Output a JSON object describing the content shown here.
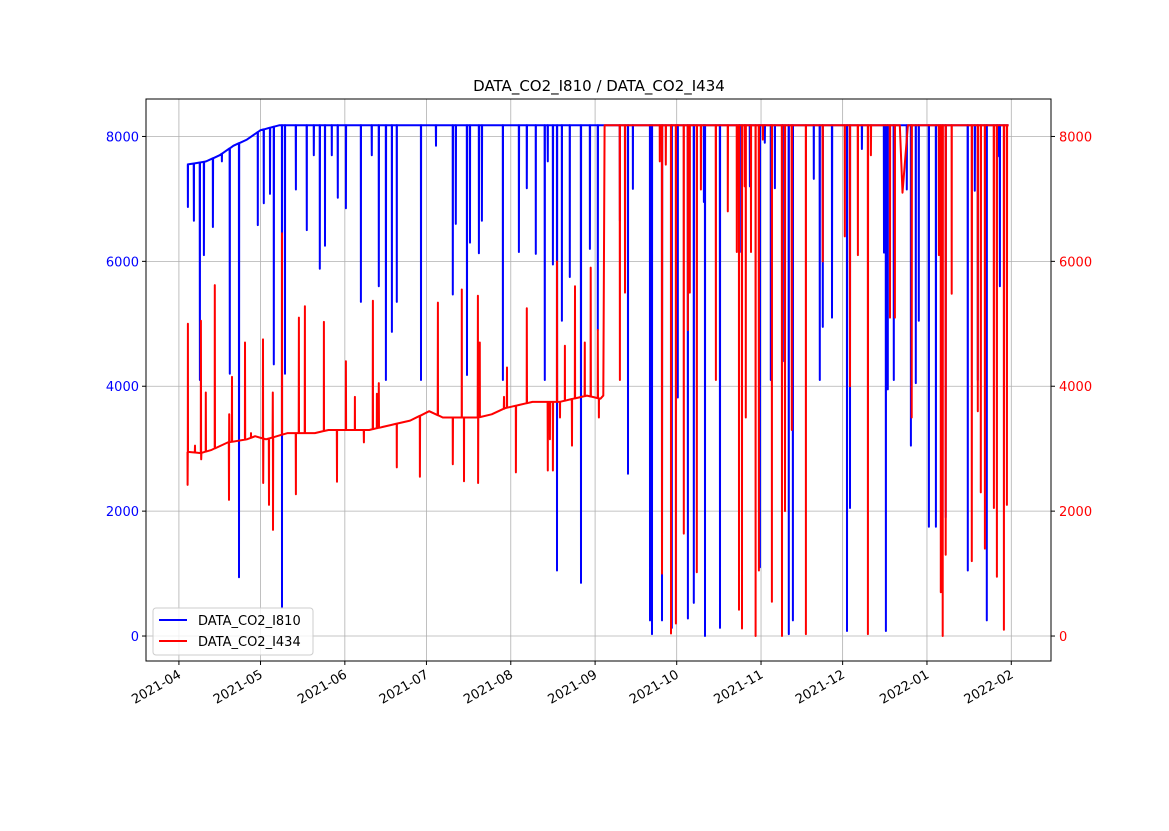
{
  "chart_data": {
    "type": "line",
    "title": "DATA_CO2_I810 / DATA_CO2_I434",
    "x_unit": "days since 2021-04-01",
    "x_origin_date": "2021-04-01",
    "xlim_days": [
      -12.1,
      320.6
    ],
    "ylim": [
      -400,
      8600
    ],
    "grid": true,
    "legend_position": "lower-left",
    "x_ticks": [
      {
        "day": 0,
        "label": "2021-04"
      },
      {
        "day": 30,
        "label": "2021-05"
      },
      {
        "day": 61,
        "label": "2021-06"
      },
      {
        "day": 91,
        "label": "2021-07"
      },
      {
        "day": 122,
        "label": "2021-08"
      },
      {
        "day": 153,
        "label": "2021-09"
      },
      {
        "day": 183,
        "label": "2021-10"
      },
      {
        "day": 214,
        "label": "2021-11"
      },
      {
        "day": 244,
        "label": "2021-12"
      },
      {
        "day": 275,
        "label": "2022-01"
      },
      {
        "day": 306,
        "label": "2022-02"
      }
    ],
    "y_ticks_left": [
      {
        "value": 0,
        "label": "0"
      },
      {
        "value": 2000,
        "label": "2000"
      },
      {
        "value": 4000,
        "label": "4000"
      },
      {
        "value": 6000,
        "label": "6000"
      },
      {
        "value": 8000,
        "label": "8000"
      }
    ],
    "y_ticks_right": [
      {
        "value": 0,
        "label": "0"
      },
      {
        "value": 2000,
        "label": "2000"
      },
      {
        "value": 4000,
        "label": "4000"
      },
      {
        "value": 6000,
        "label": "6000"
      },
      {
        "value": 8000,
        "label": "8000"
      }
    ],
    "series": [
      {
        "name": "DATA_CO2_I810",
        "color": "#0000ff",
        "axis": "left",
        "baseline": [
          [
            3,
            7550
          ],
          [
            10,
            7600
          ],
          [
            15,
            7700
          ],
          [
            20,
            7850
          ],
          [
            25,
            7950
          ],
          [
            30,
            8100
          ],
          [
            37,
            8180
          ],
          [
            305,
            8180
          ]
        ],
        "spikes": [
          [
            3.3,
            6870
          ],
          [
            5.5,
            6650
          ],
          [
            7.7,
            4100
          ],
          [
            9.2,
            6100
          ],
          [
            12.5,
            6550
          ],
          [
            15.8,
            7600
          ],
          [
            18.7,
            4200
          ],
          [
            22.1,
            940
          ],
          [
            29,
            6580
          ],
          [
            31.2,
            6930
          ],
          [
            33.5,
            7080
          ],
          [
            34.9,
            4350
          ],
          [
            37.9,
            450
          ],
          [
            39,
            4200
          ],
          [
            43,
            7150
          ],
          [
            47,
            6500
          ],
          [
            49.6,
            7700
          ],
          [
            51.8,
            5880
          ],
          [
            53.7,
            6250
          ],
          [
            56.2,
            7700
          ],
          [
            58.4,
            7020
          ],
          [
            61.4,
            6850
          ],
          [
            66.9,
            5350
          ],
          [
            70.9,
            7700
          ],
          [
            73.5,
            5600
          ],
          [
            76.1,
            4100
          ],
          [
            78.3,
            4870
          ],
          [
            80.1,
            5350
          ],
          [
            89,
            4100
          ],
          [
            94.5,
            7850
          ],
          [
            100.7,
            5470
          ],
          [
            101.8,
            6600
          ],
          [
            105.9,
            4180
          ],
          [
            107,
            6300
          ],
          [
            110.3,
            6130
          ],
          [
            111.4,
            6650
          ],
          [
            119.1,
            4100
          ],
          [
            125,
            6150
          ],
          [
            127.9,
            7170
          ],
          [
            131.2,
            6120
          ],
          [
            134.5,
            4100
          ],
          [
            135.6,
            7600
          ],
          [
            137.5,
            5950
          ],
          [
            139,
            1050
          ],
          [
            140.8,
            5050
          ],
          [
            143.7,
            5750
          ],
          [
            147.8,
            850
          ],
          [
            151.1,
            6200
          ],
          [
            154,
            4900
          ],
          [
            162.1,
            6650
          ],
          [
            165.1,
            2600
          ],
          [
            166.9,
            7160
          ],
          [
            173.2,
            250
          ],
          [
            173.9,
            30
          ],
          [
            177.6,
            250
          ],
          [
            181.2,
            130
          ],
          [
            183.4,
            3820
          ],
          [
            187.1,
            280
          ],
          [
            189.3,
            530
          ],
          [
            193,
            6950
          ],
          [
            193.4,
            0
          ],
          [
            198.9,
            130
          ],
          [
            206.2,
            6150
          ],
          [
            209.9,
            7200
          ],
          [
            213.6,
            1100
          ],
          [
            215.4,
            7900
          ],
          [
            217.6,
            4100
          ],
          [
            219.1,
            7170
          ],
          [
            222,
            4400
          ],
          [
            224.2,
            30
          ],
          [
            225.7,
            250
          ],
          [
            233.4,
            7320
          ],
          [
            235.6,
            4100
          ],
          [
            236.7,
            4950
          ],
          [
            240.1,
            5100
          ],
          [
            245.6,
            80
          ],
          [
            246.7,
            2050
          ],
          [
            251.1,
            7800
          ],
          [
            259.2,
            6140
          ],
          [
            259.9,
            80
          ],
          [
            260.6,
            3950
          ],
          [
            262.8,
            4100
          ],
          [
            267.6,
            7150
          ],
          [
            269.1,
            3050
          ],
          [
            270.9,
            4050
          ],
          [
            272,
            5050
          ],
          [
            275.7,
            1750
          ],
          [
            278.3,
            1750
          ],
          [
            281.9,
            1900
          ],
          [
            290,
            1050
          ],
          [
            292.6,
            7130
          ],
          [
            293.7,
            4100
          ],
          [
            297,
            250
          ],
          [
            301,
            7680
          ],
          [
            301.8,
            5600
          ]
        ]
      },
      {
        "name": "DATA_CO2_I434",
        "color": "#ff0000",
        "axis": "right",
        "baseline": [
          [
            3,
            2950
          ],
          [
            8,
            2930
          ],
          [
            12,
            2980
          ],
          [
            18,
            3100
          ],
          [
            25,
            3150
          ],
          [
            28,
            3200
          ],
          [
            32,
            3150
          ],
          [
            40,
            3250
          ],
          [
            50,
            3250
          ],
          [
            55,
            3300
          ],
          [
            70,
            3300
          ],
          [
            78,
            3380
          ],
          [
            85,
            3450
          ],
          [
            92,
            3600
          ],
          [
            97,
            3500
          ],
          [
            110,
            3500
          ],
          [
            115,
            3550
          ],
          [
            120,
            3650
          ],
          [
            125,
            3700
          ],
          [
            130,
            3750
          ],
          [
            140,
            3750
          ],
          [
            145,
            3800
          ],
          [
            150,
            3850
          ],
          [
            155,
            3800
          ],
          [
            156,
            3850
          ],
          [
            156.5,
            8180
          ],
          [
            265,
            8180
          ],
          [
            266,
            7100
          ],
          [
            268,
            8180
          ],
          [
            305,
            8180
          ]
        ],
        "spikes": [
          [
            3.2,
            2420
          ],
          [
            3.3,
            5000
          ],
          [
            5.9,
            3050
          ],
          [
            8.1,
            5050
          ],
          [
            8.2,
            2830
          ],
          [
            9.9,
            3900
          ],
          [
            13.2,
            5620
          ],
          [
            18.4,
            2180
          ],
          [
            18.5,
            3550
          ],
          [
            19.5,
            4150
          ],
          [
            24.3,
            4700
          ],
          [
            26.5,
            3250
          ],
          [
            30.9,
            4750
          ],
          [
            31,
            2450
          ],
          [
            33.1,
            2100
          ],
          [
            34.5,
            3900
          ],
          [
            34.6,
            1700
          ],
          [
            37.9,
            6450
          ],
          [
            43,
            2270
          ],
          [
            44.1,
            5100
          ],
          [
            46.3,
            5280
          ],
          [
            53.3,
            5030
          ],
          [
            58.1,
            2470
          ],
          [
            61.4,
            4400
          ],
          [
            64.7,
            3830
          ],
          [
            68,
            3100
          ],
          [
            71.3,
            5370
          ],
          [
            72.8,
            3880
          ],
          [
            73.5,
            4050
          ],
          [
            80.1,
            2700
          ],
          [
            88.6,
            2550
          ],
          [
            95.2,
            5340
          ],
          [
            100.7,
            2750
          ],
          [
            104,
            5550
          ],
          [
            104.8,
            2480
          ],
          [
            109.9,
            5450
          ],
          [
            110,
            2450
          ],
          [
            110.6,
            4700
          ],
          [
            119.5,
            3830
          ],
          [
            120.6,
            4300
          ],
          [
            123.9,
            2620
          ],
          [
            127.9,
            5250
          ],
          [
            135.6,
            2650
          ],
          [
            136.4,
            3150
          ],
          [
            137.5,
            2650
          ],
          [
            139,
            6000
          ],
          [
            140.1,
            3500
          ],
          [
            141.9,
            4650
          ],
          [
            144.5,
            3050
          ],
          [
            145.6,
            5600
          ],
          [
            149.2,
            4700
          ],
          [
            151.4,
            5900
          ],
          [
            154,
            4900
          ],
          [
            154.4,
            3500
          ],
          [
            162.1,
            4100
          ],
          [
            164,
            5500
          ],
          [
            176.8,
            7600
          ],
          [
            177.6,
            1000
          ],
          [
            179,
            7550
          ],
          [
            180.9,
            40
          ],
          [
            182.7,
            200
          ],
          [
            185.6,
            1640
          ],
          [
            187.1,
            4900
          ],
          [
            187.8,
            5500
          ],
          [
            190.4,
            1020
          ],
          [
            191.9,
            7150
          ],
          [
            197.4,
            4100
          ],
          [
            201.8,
            6800
          ],
          [
            205.1,
            6150
          ],
          [
            205.9,
            420
          ],
          [
            207,
            120
          ],
          [
            208,
            7200
          ],
          [
            208.4,
            3500
          ],
          [
            210.3,
            6150
          ],
          [
            212,
            0
          ],
          [
            213.2,
            1050
          ],
          [
            214.7,
            7950
          ],
          [
            218,
            550
          ],
          [
            221.7,
            0
          ],
          [
            222.8,
            2000
          ],
          [
            225.3,
            3300
          ],
          [
            230.5,
            30
          ],
          [
            236.7,
            6000
          ],
          [
            244.8,
            6400
          ],
          [
            246.7,
            4000
          ],
          [
            249.6,
            6100
          ],
          [
            253.3,
            30
          ],
          [
            254.4,
            7700
          ],
          [
            261.4,
            5100
          ],
          [
            263.2,
            5100
          ],
          [
            269.4,
            3500
          ],
          [
            279.4,
            6100
          ],
          [
            280.1,
            700
          ],
          [
            280.8,
            0
          ],
          [
            281.9,
            1300
          ],
          [
            284.1,
            5480
          ],
          [
            291.5,
            1200
          ],
          [
            293.7,
            3600
          ],
          [
            294.8,
            2300
          ],
          [
            296.3,
            1400
          ],
          [
            299.6,
            2050
          ],
          [
            300.7,
            950
          ],
          [
            303.3,
            100
          ],
          [
            304.4,
            2100
          ]
        ]
      }
    ]
  }
}
